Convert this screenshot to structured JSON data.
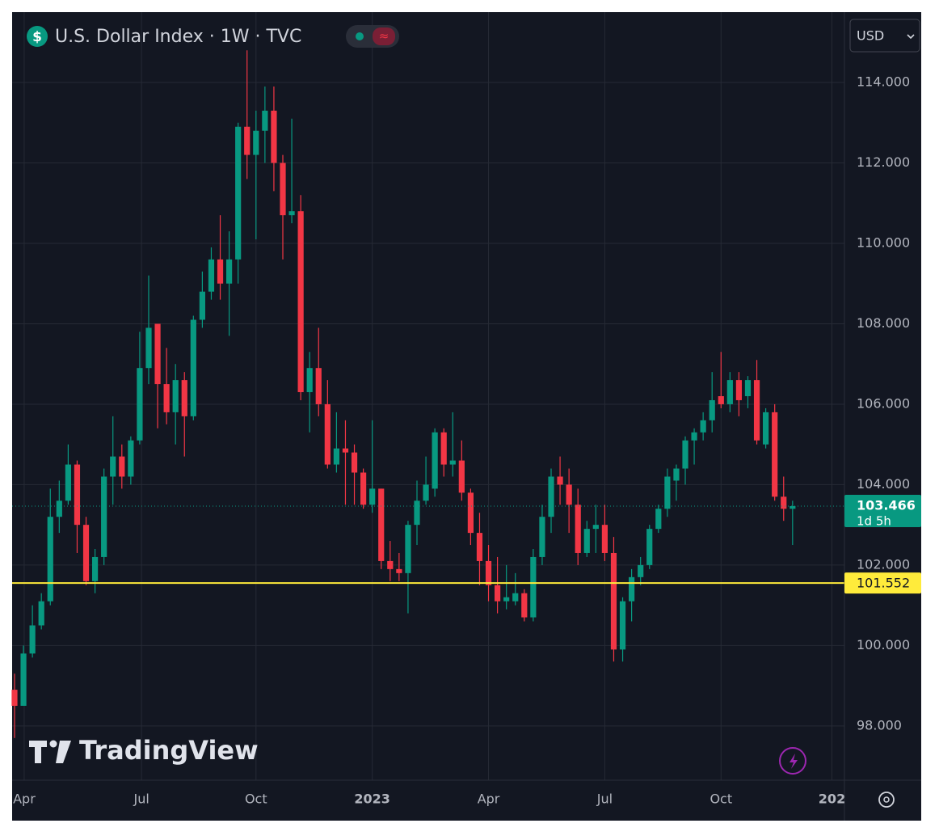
{
  "ui": {
    "title": "U.S. Dollar Index · 1W · TVC",
    "currency": "USD",
    "watermark": "TradingView"
  },
  "chart_data": {
    "type": "candlestick",
    "xlim": [
      -0.27,
      92.8
    ],
    "xticks": [
      {
        "value": 1.08,
        "label": "Apr"
      },
      {
        "value": 14.2,
        "label": "Jul"
      },
      {
        "value": 27.0,
        "label": "Oct"
      },
      {
        "value": 40.0,
        "label": "2023"
      },
      {
        "value": 53.0,
        "label": "Apr"
      },
      {
        "value": 66.0,
        "label": "Jul"
      },
      {
        "value": 79.0,
        "label": "Oct"
      },
      {
        "value": 91.4,
        "label": "202"
      }
    ],
    "ylim": [
      96.65,
      115.75
    ],
    "yticks": [
      {
        "value": 98,
        "label": "98.000"
      },
      {
        "value": 100,
        "label": "100.000"
      },
      {
        "value": 102,
        "label": "102.000"
      },
      {
        "value": 104,
        "label": "104.000"
      },
      {
        "value": 106,
        "label": "106.000"
      },
      {
        "value": 108,
        "label": "108.000"
      },
      {
        "value": 110,
        "label": "110.000"
      },
      {
        "value": 112,
        "label": "112.000"
      },
      {
        "value": 114,
        "label": "114.000"
      }
    ],
    "grid": true,
    "grid_color": "#262a35",
    "series": [
      {
        "up_color": "#089981",
        "down_color": "#f23645",
        "open": [
          98.9,
          98.5,
          99.8,
          100.5,
          101.1,
          103.2,
          103.6,
          104.5,
          103.0,
          101.6,
          102.2,
          104.2,
          104.7,
          104.2,
          105.1,
          106.9,
          108.0,
          106.5,
          105.8,
          106.6,
          105.7,
          108.1,
          108.8,
          109.6,
          109.0,
          109.6,
          112.9,
          112.2,
          112.8,
          113.3,
          112.0,
          110.7,
          110.8,
          106.3,
          106.9,
          106.0,
          104.5,
          104.9,
          104.8,
          104.3,
          103.5,
          103.9,
          102.1,
          101.9,
          101.8,
          103.0,
          103.6,
          103.9,
          105.3,
          104.5,
          104.6,
          103.8,
          102.8,
          102.1,
          101.5,
          101.1,
          101.1,
          101.3,
          100.7,
          102.2,
          103.2,
          104.2,
          104.0,
          103.5,
          102.3,
          102.9,
          103.0,
          102.3,
          99.9,
          101.1,
          101.7,
          102.0,
          102.9,
          103.4,
          104.1,
          104.4,
          105.1,
          105.3,
          105.6,
          106.2,
          106.0,
          106.6,
          106.2,
          106.6,
          105.0,
          105.8,
          103.7,
          103.4
        ],
        "high": [
          99.3,
          100.0,
          101.0,
          101.3,
          103.9,
          104.1,
          105.0,
          104.6,
          103.2,
          102.4,
          104.4,
          105.7,
          105.0,
          105.2,
          107.8,
          109.2,
          108.0,
          107.4,
          107.0,
          106.8,
          108.2,
          109.3,
          109.9,
          110.7,
          110.3,
          113.0,
          114.8,
          113.3,
          113.9,
          113.9,
          112.2,
          113.1,
          111.2,
          107.3,
          107.9,
          106.6,
          105.8,
          105.6,
          105.0,
          104.4,
          105.6,
          103.9,
          102.6,
          102.3,
          103.1,
          104.1,
          104.7,
          105.4,
          105.4,
          105.8,
          105.1,
          103.9,
          103.3,
          102.5,
          102.2,
          102.0,
          101.8,
          101.4,
          102.4,
          103.5,
          104.4,
          104.7,
          104.4,
          103.9,
          103.1,
          103.5,
          103.5,
          102.7,
          101.2,
          101.9,
          102.2,
          103.0,
          103.5,
          104.4,
          104.5,
          105.2,
          105.4,
          105.8,
          106.8,
          107.3,
          106.8,
          106.8,
          106.7,
          107.1,
          105.9,
          106.0,
          104.2,
          103.6
        ],
        "low": [
          97.7,
          98.5,
          99.7,
          100.4,
          101.0,
          102.8,
          103.5,
          102.3,
          101.5,
          101.3,
          102.0,
          103.5,
          103.9,
          104.0,
          105.0,
          106.5,
          105.4,
          105.5,
          105.0,
          104.7,
          105.6,
          107.9,
          108.6,
          108.6,
          107.7,
          109.0,
          111.6,
          110.1,
          112.0,
          111.3,
          109.6,
          110.5,
          106.1,
          105.3,
          105.7,
          104.4,
          104.3,
          103.5,
          103.5,
          103.4,
          103.3,
          101.9,
          101.6,
          101.6,
          100.8,
          102.5,
          103.5,
          103.7,
          104.2,
          104.2,
          103.6,
          102.5,
          101.5,
          101.1,
          100.8,
          100.9,
          101.0,
          100.6,
          100.6,
          102.0,
          102.8,
          103.5,
          102.8,
          102.0,
          102.2,
          102.3,
          102.1,
          99.6,
          99.6,
          100.6,
          101.5,
          101.9,
          102.8,
          103.2,
          103.6,
          104.0,
          104.5,
          105.1,
          105.3,
          105.9,
          105.8,
          105.7,
          105.9,
          105.0,
          104.9,
          103.6,
          103.1,
          102.5
        ],
        "close": [
          98.5,
          99.8,
          100.5,
          101.1,
          103.2,
          103.6,
          104.5,
          103.0,
          101.6,
          102.2,
          104.2,
          104.7,
          104.2,
          105.1,
          106.9,
          107.9,
          106.5,
          105.8,
          106.6,
          105.7,
          108.1,
          108.8,
          109.6,
          109.0,
          109.6,
          112.9,
          112.2,
          112.8,
          113.3,
          112.0,
          110.7,
          110.8,
          106.3,
          106.9,
          106.0,
          104.5,
          104.9,
          104.8,
          104.3,
          103.5,
          103.9,
          102.1,
          101.9,
          101.8,
          103.0,
          103.6,
          104.0,
          105.3,
          104.5,
          104.6,
          103.8,
          102.8,
          102.1,
          101.5,
          101.1,
          101.2,
          101.3,
          100.7,
          102.2,
          103.2,
          104.2,
          104.0,
          103.5,
          102.3,
          102.9,
          103.0,
          102.3,
          99.9,
          101.1,
          101.7,
          102.0,
          102.9,
          103.4,
          104.2,
          104.4,
          105.1,
          105.3,
          105.6,
          106.1,
          106.0,
          106.6,
          106.1,
          106.6,
          105.1,
          105.8,
          103.7,
          103.4,
          103.466
        ]
      }
    ],
    "countdown": "1d 5h",
    "hlines": [
      {
        "value": 101.552,
        "color": "#ffeb3b"
      }
    ]
  }
}
